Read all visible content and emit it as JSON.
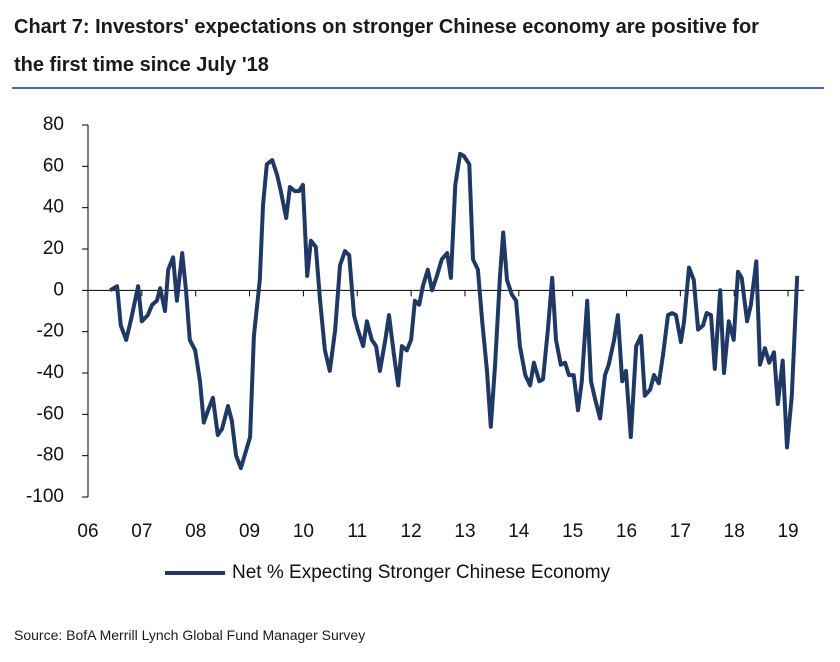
{
  "chart_data": {
    "type": "line",
    "title": "Chart 7: Investors' expectations on stronger Chinese economy are positive for the first time since July '18",
    "source": "Source: BofA Merrill Lynch Global Fund Manager Survey",
    "xlim": [
      6,
      19.3
    ],
    "xticks": [
      {
        "value": 6,
        "label": "06"
      },
      {
        "value": 7,
        "label": "07"
      },
      {
        "value": 8,
        "label": "08"
      },
      {
        "value": 9,
        "label": "09"
      },
      10,
      11,
      12,
      13,
      14,
      15,
      16,
      17,
      18,
      19
    ],
    "ylim": [
      -100,
      80
    ],
    "yticks": [
      -100,
      -80,
      -60,
      -40,
      -20,
      0,
      20,
      40,
      60,
      80
    ],
    "legend": "bottom",
    "series": [
      {
        "name": "Net % Expecting Stronger Chinese Economy",
        "color": "#1f3864",
        "x": [
          6.41,
          6.54,
          6.61,
          6.71,
          6.8,
          6.93,
          7.0,
          7.11,
          7.19,
          7.28,
          7.34,
          7.43,
          7.49,
          7.58,
          7.65,
          7.75,
          7.82,
          7.89,
          7.99,
          8.08,
          8.15,
          8.23,
          8.32,
          8.41,
          8.49,
          8.6,
          8.67,
          8.75,
          8.84,
          8.93,
          9.01,
          9.08,
          9.19,
          9.25,
          9.32,
          9.42,
          9.51,
          9.58,
          9.68,
          9.75,
          9.84,
          9.92,
          9.99,
          10.07,
          10.14,
          10.23,
          10.31,
          10.4,
          10.49,
          10.59,
          10.68,
          10.77,
          10.85,
          10.94,
          11.01,
          11.11,
          11.18,
          11.27,
          11.35,
          11.42,
          11.52,
          11.59,
          11.68,
          11.76,
          11.83,
          11.92,
          12.0,
          12.07,
          12.15,
          12.22,
          12.31,
          12.39,
          12.48,
          12.57,
          12.67,
          12.74,
          12.82,
          12.91,
          12.98,
          13.08,
          13.15,
          13.24,
          13.32,
          13.41,
          13.48,
          13.56,
          13.65,
          13.71,
          13.78,
          13.87,
          13.95,
          14.02,
          14.12,
          14.21,
          14.28,
          14.38,
          14.45,
          14.54,
          14.62,
          14.69,
          14.78,
          14.86,
          14.93,
          15.02,
          15.1,
          15.17,
          15.27,
          15.34,
          15.42,
          15.51,
          15.6,
          15.67,
          15.77,
          15.84,
          15.92,
          15.99,
          16.08,
          16.18,
          16.27,
          16.34,
          16.44,
          16.51,
          16.6,
          16.68,
          16.77,
          16.85,
          16.92,
          17.01,
          17.07,
          17.16,
          17.25,
          17.33,
          17.42,
          17.49,
          17.57,
          17.64,
          17.74,
          17.81,
          17.9,
          17.99,
          18.07,
          18.14,
          18.24,
          18.31,
          18.41,
          18.48,
          18.57,
          18.65,
          18.74,
          18.81,
          18.9,
          18.98,
          19.07,
          19.17
        ],
        "values": [
          0,
          2,
          -17,
          -24,
          -14,
          2,
          -15,
          -12,
          -7,
          -5,
          1,
          -10,
          10,
          16,
          -5,
          18,
          0,
          -24,
          -29,
          -44,
          -64,
          -58,
          -52,
          -70,
          -67,
          -56,
          -63,
          -80,
          -86,
          -78,
          -71,
          -22,
          5,
          41,
          61,
          63,
          56,
          48,
          35,
          50,
          48,
          48,
          51,
          7,
          24,
          21,
          -5,
          -29,
          -39,
          -19,
          12,
          19,
          17,
          -12,
          -19,
          -27,
          -15,
          -24,
          -27,
          -39,
          -24,
          -12,
          -31,
          -46,
          -27,
          -29,
          -24,
          -5,
          -7,
          2,
          10,
          0,
          7,
          15,
          18,
          6,
          51,
          66,
          65,
          61,
          15,
          10,
          -15,
          -39,
          -66,
          -36,
          7,
          28,
          5,
          -2,
          -5,
          -27,
          -41,
          -46,
          -35,
          -44,
          -43,
          -19,
          6,
          -24,
          -36,
          -35,
          -41,
          -41,
          -58,
          -44,
          -5,
          -44,
          -53,
          -62,
          -41,
          -36,
          -24,
          -12,
          -44,
          -39,
          -71,
          -27,
          -22,
          -51,
          -48,
          -41,
          -45,
          -31,
          -12,
          -11,
          -12,
          -25,
          -15,
          11,
          5,
          -19,
          -17,
          -11,
          -12,
          -38,
          0,
          -40,
          -15,
          -24,
          9,
          6,
          -15,
          -7,
          14,
          -36,
          -28,
          -35,
          -30,
          -55,
          -34,
          -76,
          -51,
          7
        ]
      }
    ]
  }
}
